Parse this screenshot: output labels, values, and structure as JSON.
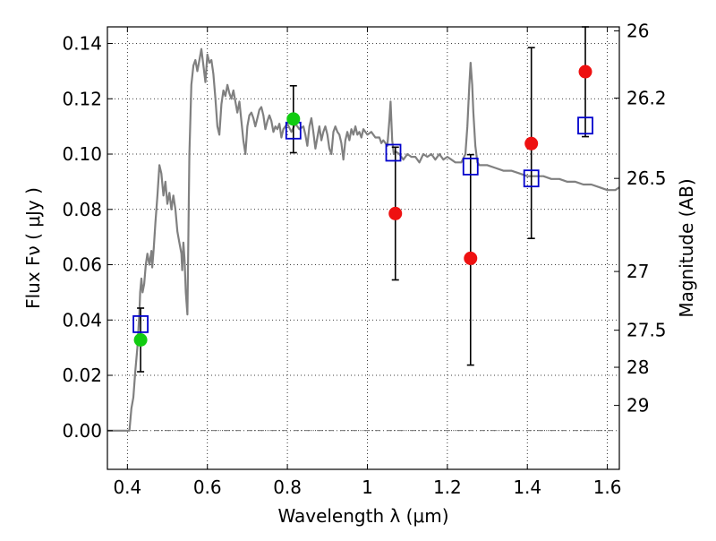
{
  "chart_data": {
    "type": "scatter",
    "xlabel": "Wavelength  λ (μm)",
    "ylabel": "Flux  Fν  ( μJy )",
    "ylabel_right": "Magnitude (AB)",
    "xlim": [
      0.35,
      1.63
    ],
    "ylim": [
      -0.014,
      0.146
    ],
    "x_ticks": [
      {
        "value": 0.4,
        "label": "0.4"
      },
      {
        "value": 0.6,
        "label": "0.6"
      },
      {
        "value": 0.8,
        "label": "0.8"
      },
      {
        "value": 1.0,
        "label": "1"
      },
      {
        "value": 1.2,
        "label": "1.2"
      },
      {
        "value": 1.4,
        "label": "1.4"
      },
      {
        "value": 1.6,
        "label": "1.6"
      }
    ],
    "y_ticks": [
      {
        "value": 0.0,
        "label": "0.00"
      },
      {
        "value": 0.02,
        "label": "0.02"
      },
      {
        "value": 0.04,
        "label": "0.04"
      },
      {
        "value": 0.06,
        "label": "0.06"
      },
      {
        "value": 0.08,
        "label": "0.08"
      },
      {
        "value": 0.1,
        "label": "0.10"
      },
      {
        "value": 0.12,
        "label": "0.12"
      },
      {
        "value": 0.14,
        "label": "0.14"
      }
    ],
    "mag_ticks": [
      {
        "mag": 26,
        "label": "26"
      },
      {
        "mag": 26.2,
        "label": "26.2"
      },
      {
        "mag": 26.5,
        "label": "26.5"
      },
      {
        "mag": 27,
        "label": "27"
      },
      {
        "mag": 27.5,
        "label": "27.5"
      },
      {
        "mag": 28,
        "label": "28"
      },
      {
        "mag": 29,
        "label": "29"
      }
    ],
    "grid": true,
    "zero_line": true,
    "colors": {
      "template": "#808080",
      "model_box": "#0000cc",
      "observed_red": "#ee1111",
      "observed_green": "#11cc11",
      "error_bar": "#000000"
    },
    "series": [
      {
        "name": "template spectrum",
        "kind": "line",
        "points": [
          [
            0.35,
            0.0
          ],
          [
            0.4,
            0.0
          ],
          [
            0.405,
            0.0
          ],
          [
            0.41,
            0.008
          ],
          [
            0.415,
            0.012
          ],
          [
            0.42,
            0.022
          ],
          [
            0.425,
            0.03
          ],
          [
            0.43,
            0.043
          ],
          [
            0.432,
            0.05
          ],
          [
            0.435,
            0.055
          ],
          [
            0.438,
            0.05
          ],
          [
            0.442,
            0.053
          ],
          [
            0.446,
            0.06
          ],
          [
            0.45,
            0.064
          ],
          [
            0.455,
            0.06
          ],
          [
            0.46,
            0.065
          ],
          [
            0.462,
            0.059
          ],
          [
            0.466,
            0.066
          ],
          [
            0.47,
            0.075
          ],
          [
            0.475,
            0.085
          ],
          [
            0.48,
            0.096
          ],
          [
            0.485,
            0.093
          ],
          [
            0.49,
            0.085
          ],
          [
            0.495,
            0.09
          ],
          [
            0.5,
            0.082
          ],
          [
            0.505,
            0.086
          ],
          [
            0.51,
            0.08
          ],
          [
            0.515,
            0.085
          ],
          [
            0.52,
            0.08
          ],
          [
            0.525,
            0.072
          ],
          [
            0.53,
            0.068
          ],
          [
            0.535,
            0.064
          ],
          [
            0.537,
            0.058
          ],
          [
            0.54,
            0.068
          ],
          [
            0.543,
            0.062
          ],
          [
            0.546,
            0.05
          ],
          [
            0.55,
            0.042
          ],
          [
            0.555,
            0.1
          ],
          [
            0.56,
            0.125
          ],
          [
            0.565,
            0.132
          ],
          [
            0.57,
            0.134
          ],
          [
            0.575,
            0.13
          ],
          [
            0.58,
            0.134
          ],
          [
            0.585,
            0.138
          ],
          [
            0.59,
            0.132
          ],
          [
            0.595,
            0.126
          ],
          [
            0.6,
            0.136
          ],
          [
            0.605,
            0.133
          ],
          [
            0.61,
            0.134
          ],
          [
            0.615,
            0.129
          ],
          [
            0.62,
            0.12
          ],
          [
            0.625,
            0.11
          ],
          [
            0.63,
            0.107
          ],
          [
            0.635,
            0.118
          ],
          [
            0.64,
            0.123
          ],
          [
            0.645,
            0.121
          ],
          [
            0.65,
            0.125
          ],
          [
            0.655,
            0.122
          ],
          [
            0.66,
            0.12
          ],
          [
            0.665,
            0.123
          ],
          [
            0.67,
            0.119
          ],
          [
            0.675,
            0.115
          ],
          [
            0.68,
            0.119
          ],
          [
            0.685,
            0.112
          ],
          [
            0.69,
            0.105
          ],
          [
            0.695,
            0.1
          ],
          [
            0.7,
            0.11
          ],
          [
            0.705,
            0.114
          ],
          [
            0.71,
            0.115
          ],
          [
            0.715,
            0.113
          ],
          [
            0.72,
            0.11
          ],
          [
            0.725,
            0.113
          ],
          [
            0.73,
            0.116
          ],
          [
            0.735,
            0.117
          ],
          [
            0.74,
            0.114
          ],
          [
            0.745,
            0.109
          ],
          [
            0.75,
            0.112
          ],
          [
            0.755,
            0.114
          ],
          [
            0.76,
            0.112
          ],
          [
            0.765,
            0.108
          ],
          [
            0.77,
            0.11
          ],
          [
            0.775,
            0.109
          ],
          [
            0.78,
            0.111
          ],
          [
            0.785,
            0.106
          ],
          [
            0.79,
            0.109
          ],
          [
            0.8,
            0.111
          ],
          [
            0.81,
            0.108
          ],
          [
            0.82,
            0.111
          ],
          [
            0.83,
            0.109
          ],
          [
            0.84,
            0.11
          ],
          [
            0.845,
            0.107
          ],
          [
            0.85,
            0.103
          ],
          [
            0.855,
            0.11
          ],
          [
            0.86,
            0.113
          ],
          [
            0.865,
            0.108
          ],
          [
            0.87,
            0.102
          ],
          [
            0.875,
            0.106
          ],
          [
            0.88,
            0.11
          ],
          [
            0.885,
            0.105
          ],
          [
            0.89,
            0.108
          ],
          [
            0.895,
            0.11
          ],
          [
            0.9,
            0.107
          ],
          [
            0.905,
            0.102
          ],
          [
            0.91,
            0.1
          ],
          [
            0.915,
            0.108
          ],
          [
            0.92,
            0.11
          ],
          [
            0.925,
            0.108
          ],
          [
            0.93,
            0.107
          ],
          [
            0.935,
            0.104
          ],
          [
            0.94,
            0.098
          ],
          [
            0.945,
            0.105
          ],
          [
            0.95,
            0.108
          ],
          [
            0.955,
            0.105
          ],
          [
            0.96,
            0.109
          ],
          [
            0.965,
            0.107
          ],
          [
            0.97,
            0.11
          ],
          [
            0.975,
            0.107
          ],
          [
            0.98,
            0.108
          ],
          [
            0.985,
            0.106
          ],
          [
            0.99,
            0.109
          ],
          [
            1.0,
            0.107
          ],
          [
            1.01,
            0.108
          ],
          [
            1.02,
            0.106
          ],
          [
            1.03,
            0.106
          ],
          [
            1.035,
            0.104
          ],
          [
            1.04,
            0.105
          ],
          [
            1.045,
            0.104
          ],
          [
            1.05,
            0.103
          ],
          [
            1.055,
            0.112
          ],
          [
            1.058,
            0.119
          ],
          [
            1.062,
            0.105
          ],
          [
            1.066,
            0.1
          ],
          [
            1.07,
            0.101
          ],
          [
            1.08,
            0.1
          ],
          [
            1.09,
            0.098
          ],
          [
            1.1,
            0.1
          ],
          [
            1.11,
            0.099
          ],
          [
            1.12,
            0.099
          ],
          [
            1.13,
            0.097
          ],
          [
            1.14,
            0.1
          ],
          [
            1.15,
            0.099
          ],
          [
            1.16,
            0.1
          ],
          [
            1.17,
            0.098
          ],
          [
            1.18,
            0.1
          ],
          [
            1.19,
            0.098
          ],
          [
            1.2,
            0.099
          ],
          [
            1.21,
            0.098
          ],
          [
            1.22,
            0.097
          ],
          [
            1.235,
            0.097
          ],
          [
            1.245,
            0.1
          ],
          [
            1.25,
            0.11
          ],
          [
            1.255,
            0.125
          ],
          [
            1.258,
            0.133
          ],
          [
            1.262,
            0.125
          ],
          [
            1.265,
            0.115
          ],
          [
            1.27,
            0.103
          ],
          [
            1.275,
            0.097
          ],
          [
            1.28,
            0.096
          ],
          [
            1.3,
            0.096
          ],
          [
            1.32,
            0.095
          ],
          [
            1.34,
            0.094
          ],
          [
            1.36,
            0.094
          ],
          [
            1.38,
            0.093
          ],
          [
            1.4,
            0.092
          ],
          [
            1.42,
            0.092
          ],
          [
            1.44,
            0.092
          ],
          [
            1.46,
            0.091
          ],
          [
            1.48,
            0.091
          ],
          [
            1.5,
            0.09
          ],
          [
            1.52,
            0.09
          ],
          [
            1.54,
            0.089
          ],
          [
            1.56,
            0.089
          ],
          [
            1.58,
            0.088
          ],
          [
            1.6,
            0.087
          ],
          [
            1.62,
            0.087
          ],
          [
            1.63,
            0.088
          ]
        ]
      },
      {
        "name": "model photometry",
        "kind": "square",
        "points": [
          [
            0.433,
            0.0385
          ],
          [
            0.815,
            0.1085
          ],
          [
            1.065,
            0.1005
          ],
          [
            1.258,
            0.0955
          ],
          [
            1.41,
            0.0912
          ],
          [
            1.545,
            0.1103
          ]
        ]
      },
      {
        "name": "observed (red)",
        "kind": "circle",
        "points": [
          {
            "x": 1.07,
            "y": 0.0785,
            "yerr_low": 0.0545,
            "yerr_high": 0.1025
          },
          {
            "x": 1.258,
            "y": 0.0623,
            "yerr_low": 0.0237,
            "yerr_high": 0.0998
          },
          {
            "x": 1.41,
            "y": 0.1038,
            "yerr_low": 0.0695,
            "yerr_high": 0.1385
          },
          {
            "x": 1.545,
            "y": 0.1298,
            "yerr_low": 0.1063,
            "yerr_high": 0.146
          }
        ]
      },
      {
        "name": "observed (green)",
        "kind": "circle",
        "points": [
          {
            "x": 0.433,
            "y": 0.0328,
            "yerr_low": 0.0213,
            "yerr_high": 0.0443
          },
          {
            "x": 0.815,
            "y": 0.1127,
            "yerr_low": 0.1005,
            "yerr_high": 0.1247
          }
        ]
      }
    ]
  }
}
